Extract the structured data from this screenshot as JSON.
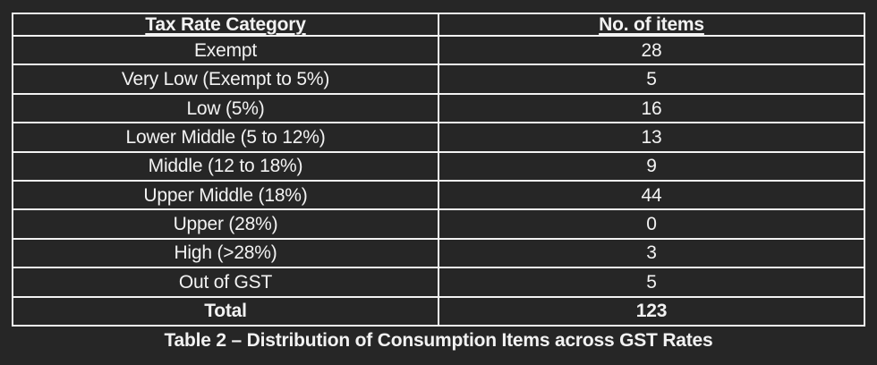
{
  "colors": {
    "background": "#262626",
    "border": "#f2f2f2",
    "text": "#f2f2f2"
  },
  "table": {
    "col_headers": [
      "Tax Rate Category",
      "No. of items"
    ],
    "rows": [
      [
        "Exempt",
        "28"
      ],
      [
        "Very Low (Exempt to 5%)",
        "5"
      ],
      [
        "Low (5%)",
        "16"
      ],
      [
        "Lower Middle (5 to 12%)",
        "13"
      ],
      [
        "Middle (12 to 18%)",
        "9"
      ],
      [
        "Upper Middle (18%)",
        "44"
      ],
      [
        "Upper (28%)",
        "0"
      ],
      [
        "High (>28%)",
        "3"
      ],
      [
        "Out of GST",
        "5"
      ]
    ],
    "total_row": [
      "Total",
      "123"
    ]
  },
  "caption": "Table 2 – Distribution of Consumption Items across GST Rates",
  "chart_data": {
    "type": "table",
    "title": "Table 2 – Distribution of Consumption Items across GST Rates",
    "columns": [
      "Tax Rate Category",
      "No. of items"
    ],
    "categories": [
      "Exempt",
      "Very Low (Exempt to 5%)",
      "Low (5%)",
      "Lower Middle (5 to 12%)",
      "Middle (12 to 18%)",
      "Upper Middle (18%)",
      "Upper (28%)",
      "High (>28%)",
      "Out of GST"
    ],
    "values": [
      28,
      5,
      16,
      13,
      9,
      44,
      0,
      3,
      5
    ],
    "total": 123
  }
}
